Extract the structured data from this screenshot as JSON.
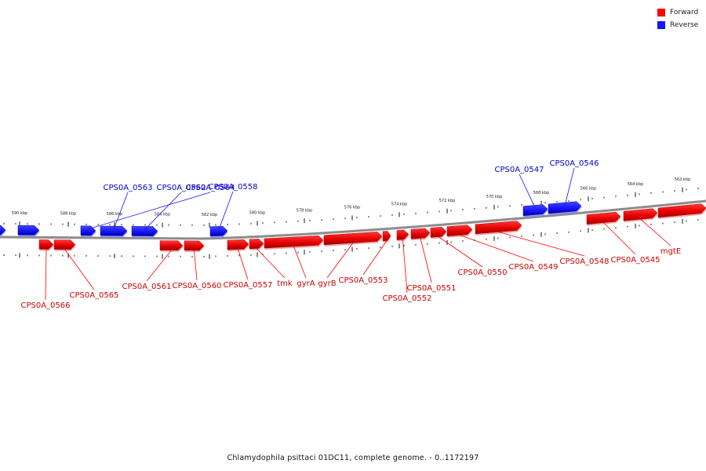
{
  "legend": {
    "forward_label": "Forward",
    "reverse_label": "Reverse",
    "forward_color": "#ff0000",
    "reverse_color": "#1515ff"
  },
  "caption": "Chlamydophila psittaci 01DC11, complete genome. - 0..1172197",
  "chart_data": {
    "type": "genome-map",
    "scale_unit": "kbp",
    "scale_labels": [
      "590 kbp",
      "588 kbp",
      "586 kbp",
      "584 kbp",
      "582 kbp",
      "580 kbp",
      "578 kbp",
      "576 kbp",
      "574 kbp",
      "572 kbp",
      "570 kbp",
      "568 kbp",
      "566 kbp",
      "564 kbp",
      "562 kbp"
    ],
    "genes": [
      {
        "strand": "reverse",
        "label": "CPS0A_0564"
      },
      {
        "strand": "reverse",
        "label": "CPS0A_0563"
      },
      {
        "strand": "reverse",
        "label": "CPS0A_0562"
      },
      {
        "strand": "reverse",
        "label": "CPS0A_0558"
      },
      {
        "strand": "reverse",
        "label": "CPS0A_0547"
      },
      {
        "strand": "reverse",
        "label": "CPS0A_0546"
      },
      {
        "strand": "forward",
        "label": "CPS0A_0566"
      },
      {
        "strand": "forward",
        "label": "CPS0A_0565"
      },
      {
        "strand": "forward",
        "label": "CPS0A_0561"
      },
      {
        "strand": "forward",
        "label": "CPS0A_0560"
      },
      {
        "strand": "forward",
        "label": "CPS0A_0557"
      },
      {
        "strand": "forward",
        "label": "tmk"
      },
      {
        "strand": "forward",
        "label": "gyrA"
      },
      {
        "strand": "forward",
        "label": "gyrB"
      },
      {
        "strand": "forward",
        "label": "CPS0A_0553"
      },
      {
        "strand": "forward",
        "label": "CPS0A_0552"
      },
      {
        "strand": "forward",
        "label": "CPS0A_0551"
      },
      {
        "strand": "forward",
        "label": "CPS0A_0550"
      },
      {
        "strand": "forward",
        "label": "CPS0A_0549"
      },
      {
        "strand": "forward",
        "label": "CPS0A_0548"
      },
      {
        "strand": "forward",
        "label": "CPS0A_0545"
      },
      {
        "strand": "forward",
        "label": "mgtE"
      }
    ]
  }
}
